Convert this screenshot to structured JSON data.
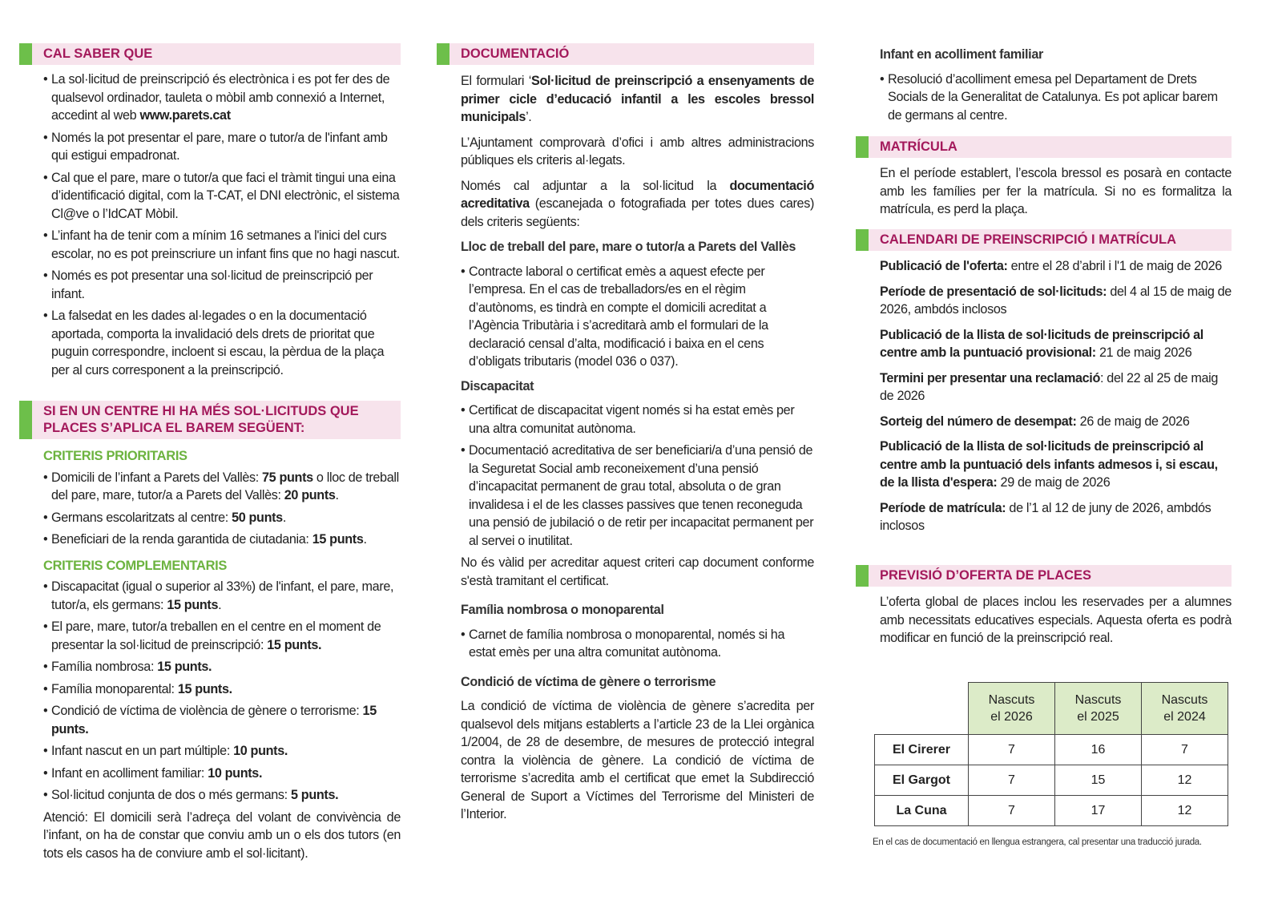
{
  "col1": {
    "cal_saber": {
      "title": "CAL SABER QUE",
      "items": [
        [
          {
            "t": "La sol·licitud de preinscripció és electrònica i es pot fer des de qualsevol ordinador, tauleta o mòbil amb connexió a Internet, accedint al web "
          },
          {
            "t": "www.parets.cat",
            "b": true
          }
        ],
        [
          {
            "t": "Només la pot presentar el pare, mare o tutor/a de l'infant amb qui estigui empadronat."
          }
        ],
        [
          {
            "t": "Cal que el pare, mare o tutor/a que faci el tràmit tingui una eina d’identificació digital, com la T-CAT, el DNI electrònic, el sistema Cl@ve o l’IdCAT Mòbil."
          }
        ],
        [
          {
            "t": "L’infant ha de tenir com a mínim 16 setmanes a l'inici del curs escolar, no es pot preinscriure un infant fins que no hagi nascut."
          }
        ],
        [
          {
            "t": "Només es pot presentar una sol·licitud de preinscripció per infant."
          }
        ],
        [
          {
            "t": "La falsedat en les dades al·legades o en la documentació aportada, comporta la invalidació dels drets de prioritat que puguin correspondre, incloent si escau, la pèrdua de la plaça per al curs corresponent a la preinscripció."
          }
        ]
      ]
    },
    "barem": {
      "title": "SI EN UN CENTRE HI HA MÉS SOL·LICITUDS QUE PLACES S’APLICA EL BAREM SEGÜENT:",
      "prioritaris_title": "CRITERIS PRIORITARIS",
      "prioritaris": [
        [
          {
            "t": "Domicili de l’infant a Parets del Vallès: "
          },
          {
            "t": "75 punts",
            "b": true
          },
          {
            "t": " o lloc de treball del pare, mare, tutor/a a Parets del Vallès: "
          },
          {
            "t": "20 punts",
            "b": true
          },
          {
            "t": "."
          }
        ],
        [
          {
            "t": "Germans escolaritzats al centre: "
          },
          {
            "t": "50 punts",
            "b": true
          },
          {
            "t": "."
          }
        ],
        [
          {
            "t": "Beneficiari de la renda garantida de ciutadania: "
          },
          {
            "t": "15 punts",
            "b": true
          },
          {
            "t": "."
          }
        ]
      ],
      "complementaris_title": "CRITERIS COMPLEMENTARIS",
      "complementaris": [
        [
          {
            "t": "Discapacitat (igual o superior al 33%) de l'infant, el pare, mare, tutor/a, els germans: "
          },
          {
            "t": "15 punts",
            "b": true
          },
          {
            "t": "."
          }
        ],
        [
          {
            "t": "El pare, mare, tutor/a treballen en el centre en el moment de presentar la sol·licitud de preinscripció: "
          },
          {
            "t": "15 punts.",
            "b": true
          }
        ],
        [
          {
            "t": "Família nombrosa: "
          },
          {
            "t": "15 punts.",
            "b": true
          }
        ],
        [
          {
            "t": "Família monoparental: "
          },
          {
            "t": "15 punts.",
            "b": true
          }
        ],
        [
          {
            "t": "Condició de víctima de violència de gènere o terrorisme: "
          },
          {
            "t": "15 punts.",
            "b": true
          }
        ],
        [
          {
            "t": "Infant nascut en un part múltiple: "
          },
          {
            "t": "10 punts.",
            "b": true
          }
        ],
        [
          {
            "t": "Infant en acolliment familiar: "
          },
          {
            "t": "10 punts.",
            "b": true
          }
        ],
        [
          {
            "t": "Sol·licitud conjunta de dos o més germans: "
          },
          {
            "t": "5 punts.",
            "b": true
          }
        ]
      ],
      "atencio": "Atenció: El domicili serà l’adreça del volant de convivència de l’infant, on ha de constar que conviu amb un o els dos tutors (en tots els casos ha de conviure amb el sol·licitant)."
    }
  },
  "col2": {
    "title": "DOCUMENTACIÓ",
    "intro": [
      {
        "t": "El formulari ‘"
      },
      {
        "t": "Sol·licitud de preinscripció a ensenyaments de primer cicle d’educació infantil a les escoles bressol municipals",
        "b": true
      },
      {
        "t": "’."
      }
    ],
    "p2": [
      {
        "t": "L’Ajuntament comprovarà d’ofici i amb altres administracions públiques els criteris al·legats."
      }
    ],
    "p3": [
      {
        "t": "Només cal adjuntar a la sol·licitud la "
      },
      {
        "t": "documentació acreditativa",
        "b": true
      },
      {
        "t": " (escanejada o fotografiada per totes dues cares) dels criteris següents:"
      }
    ],
    "lloc_title": "Lloc de treball del pare, mare o tutor/a a Parets del Vallès",
    "lloc_items": [
      [
        {
          "t": "Contracte laboral o certificat emès a aquest efecte per l’empresa. En el cas de treballadors/es en el règim d’autònoms, es tindrà en compte el domicili acreditat a l’Agència Tributària i s’acreditarà amb el formulari de la declaració censal d’alta, modificació i baixa en el cens d’obligats tributaris (model 036 o 037)."
        }
      ]
    ],
    "disc_title": "Discapacitat",
    "disc_items": [
      [
        {
          "t": "Certificat de discapacitat vigent només si ha estat emès per una altra comunitat autònoma."
        }
      ],
      [
        {
          "t": "Documentació acreditativa de ser beneficiari/a d’una pensió de la Seguretat Social amb reconeixement d’una pensió d’incapacitat permanent de grau total, absoluta o de gran invalidesa i el de les classes passives que tenen reconeguda una pensió de jubilació o de retir per incapacitat permanent per al servei o inutilitat."
        }
      ]
    ],
    "disc_note": "No és vàlid per acreditar aquest criteri cap document conforme s'està tramitant el certificat.",
    "fam_title": "Família nombrosa o monoparental",
    "fam_items": [
      [
        {
          "t": "Carnet de família nombrosa o monoparental, només si ha estat emès per una altra comunitat autònoma."
        }
      ]
    ],
    "vict_title": "Condició de víctima de gènere o terrorisme",
    "vict_text": "La condició de víctima de violència de gènere s’acredita per qualsevol dels mitjans establerts a l’article 23 de la Llei orgànica 1/2004, de 28 de desembre, de mesures de protecció integral contra la violència de gènere. La condició de víctima de terrorisme s’acredita amb el certificat que emet la Subdirecció General de Suport a Víctimes del Terrorisme del Ministeri de l’Interior."
  },
  "col3": {
    "acoll_title": "Infant en acolliment familiar",
    "acoll_items": [
      [
        {
          "t": "Resolució d’acolliment emesa pel Departament de Drets Socials de la Generalitat de Catalunya. Es pot aplicar barem de germans al centre."
        }
      ]
    ],
    "matricula_title": "MATRÍCULA",
    "matricula_text": "En el període establert, l’escola bressol es posarà en contacte amb les famílies per fer la matrícula. Si no es formalitza la matrícula, es perd la plaça.",
    "calendari_title": "CALENDARI DE PREINSCRIPCIÓ I MATRÍCULA",
    "calendari": [
      [
        {
          "t": "Publicació de l'oferta:",
          "b": true
        },
        {
          "t": " entre el 28 d’abril i l'1 de maig de 2026"
        }
      ],
      [
        {
          "t": "Període de presentació de sol·licituds:",
          "b": true
        },
        {
          "t": " del 4 al 15 de maig de 2026, ambdós inclosos"
        }
      ],
      [
        {
          "t": "Publicació de la llista de sol·licituds de preinscripció al centre amb la puntuació provisional:",
          "b": true
        },
        {
          "t": " 21 de maig 2026"
        }
      ],
      [
        {
          "t": "Termini per presentar una reclamació",
          "b": true
        },
        {
          "t": ": del 22 al 25 de maig de 2026"
        }
      ],
      [
        {
          "t": "Sorteig del número de desempat:",
          "b": true
        },
        {
          "t": " 26 de maig de 2026"
        }
      ],
      [
        {
          "t": "Publicació de la llista de sol·licituds de preinscripció al centre amb la puntuació dels infants admesos i, si escau, de la llista d'espera:",
          "b": true
        },
        {
          "t": " 29 de maig de 2026"
        }
      ],
      [
        {
          "t": "Període de matrícula:",
          "b": true
        },
        {
          "t": " de l’1 al 12 de juny de 2026, ambdós inclosos"
        }
      ]
    ],
    "previsio_title": "PREVISIÓ D’OFERTA DE PLACES",
    "previsio_text": "L’oferta global de places inclou les reservades per a alumnes amb necessitats educatives especials. Aquesta oferta es podrà modificar en funció de la preinscripció real.",
    "table": {
      "headers": [
        [
          "Nascuts",
          "el 2026"
        ],
        [
          "Nascuts",
          "el 2025"
        ],
        [
          "Nascuts",
          "el 2024"
        ]
      ],
      "rows": [
        {
          "name": "El Cirerer",
          "values": [
            "7",
            "16",
            "7"
          ]
        },
        {
          "name": "El Gargot",
          "values": [
            "7",
            "15",
            "12"
          ]
        },
        {
          "name": "La Cuna",
          "values": [
            "7",
            "17",
            "12"
          ]
        }
      ]
    },
    "footnote": "En el cas de documentació en llengua estrangera, cal presentar una traducció jurada."
  },
  "colors": {
    "heading": "#a3195b",
    "band": "#f7e3ec",
    "accent_green": "#6dbf4a",
    "subheading_green": "#6cb33f",
    "table_header": "#dcebc8"
  }
}
